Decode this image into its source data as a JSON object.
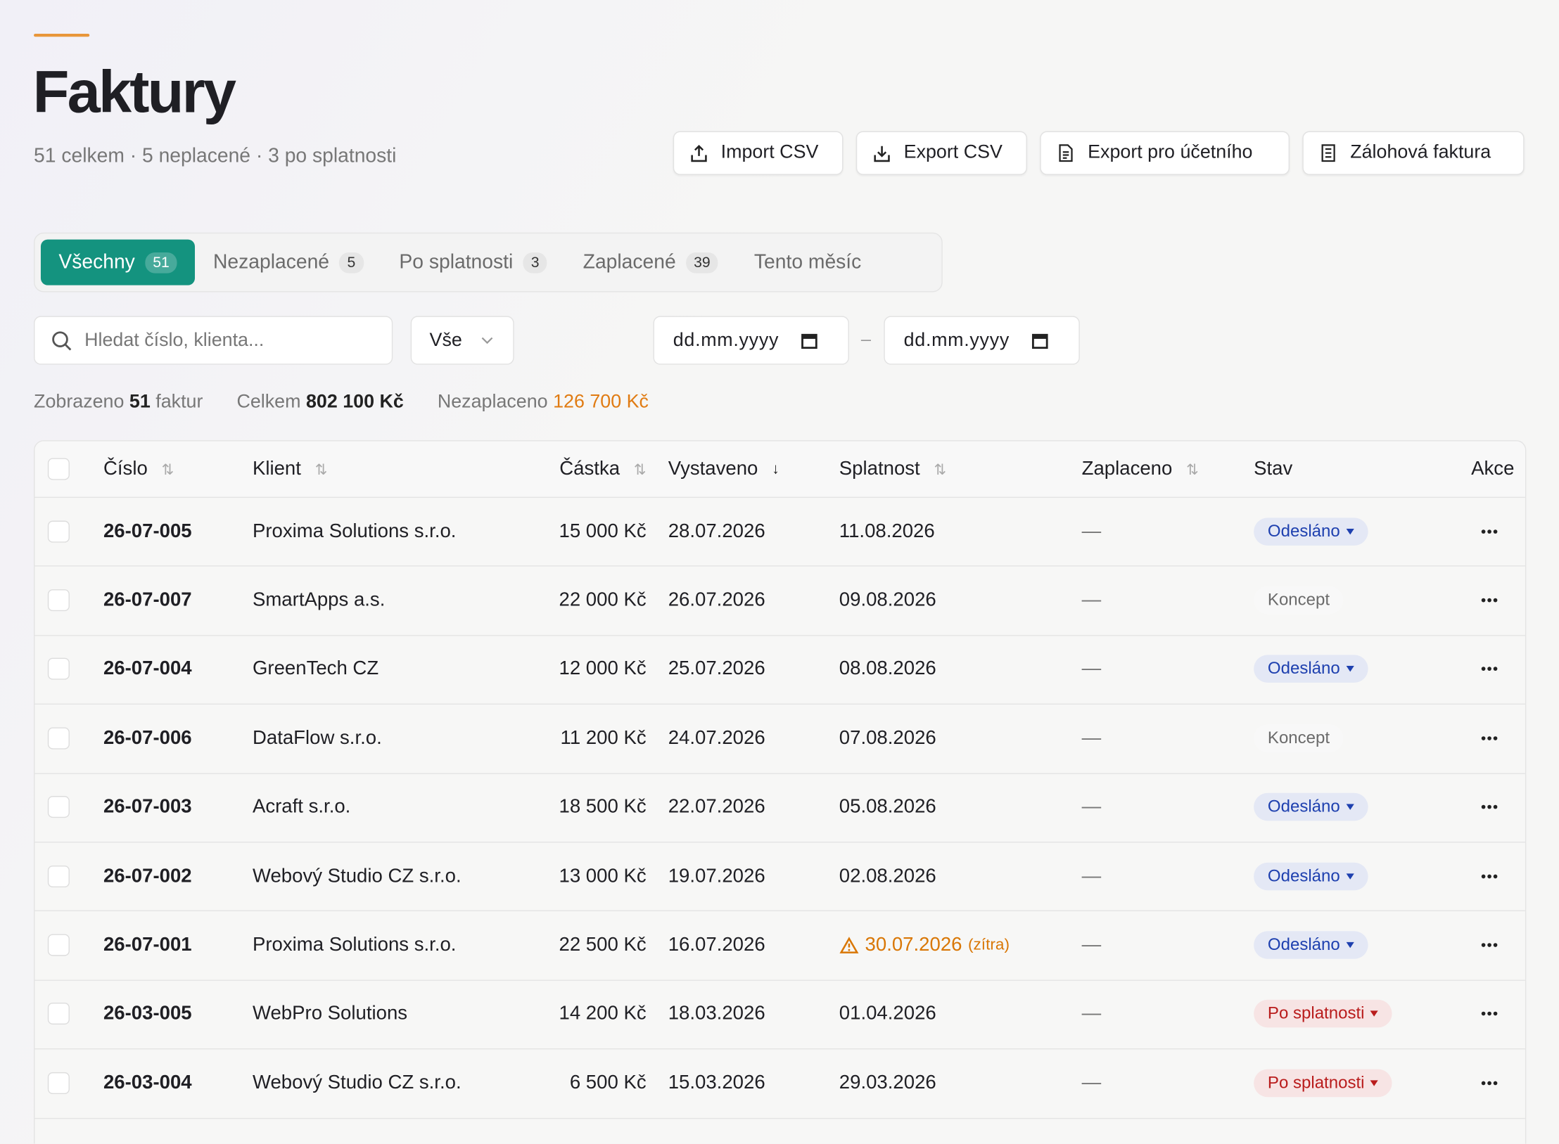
{
  "header": {
    "title": "Faktury",
    "subtitle": "51 celkem · 5 neplacené · 3 po splatnosti"
  },
  "actions": [
    "Import CSV",
    "Export CSV",
    "Export pro účetního",
    "Zálohová faktura"
  ],
  "tabs": [
    {
      "label": "Všechny",
      "count": "51"
    },
    {
      "label": "Nezaplacené",
      "count": "5"
    },
    {
      "label": "Po splatnosti",
      "count": "3"
    },
    {
      "label": "Zaplacené",
      "count": "39"
    },
    {
      "label": "Tento měsíc"
    }
  ],
  "filters": {
    "search_placeholder": "Hledat číslo, klienta...",
    "status_select": "Vše",
    "date_from": "dd.mm.yyyy",
    "date_separator": "–",
    "date_to": "dd.mm.yyyy"
  },
  "summary": {
    "shown_label": "Zobrazeno",
    "shown_count": "51",
    "shown_unit": "faktur",
    "total_label": "Celkem",
    "total": "802 100 Kč",
    "unpaid_label": "Nezaplaceno",
    "unpaid": "126 700 Kč"
  },
  "table": {
    "columns": [
      "Číslo",
      "Klient",
      "Částka",
      "Vystaveno",
      "Splatnost",
      "Zaplaceno",
      "Stav",
      "Akce"
    ],
    "rows": [
      {
        "number": "26-07-005",
        "client": "Proxima Solutions s.r.o.",
        "amount": "15 000 Kč",
        "issued": "28.07.2026",
        "due": "11.08.2026",
        "paid": "—",
        "status": "Odesláno",
        "status_color": "#1e40af"
      },
      {
        "number": "26-07-007",
        "client": "SmartApps a.s.",
        "amount": "22 000 Kč",
        "issued": "26.07.2026",
        "due": "09.08.2026",
        "paid": "—",
        "status": "Koncept",
        "status_color": "#6b6b6b"
      },
      {
        "number": "26-07-004",
        "client": "GreenTech CZ",
        "amount": "12 000 Kč",
        "issued": "25.07.2026",
        "due": "08.08.2026",
        "paid": "—",
        "status": "Odesláno",
        "status_color": "#1e40af"
      },
      {
        "number": "26-07-006",
        "client": "DataFlow s.r.o.",
        "amount": "11 200 Kč",
        "issued": "24.07.2026",
        "due": "07.08.2026",
        "paid": "—",
        "status": "Koncept",
        "status_color": "#6b6b6b"
      },
      {
        "number": "26-07-003",
        "client": "Acraft s.r.o.",
        "amount": "18 500 Kč",
        "issued": "22.07.2026",
        "due": "05.08.2026",
        "paid": "—",
        "status": "Odesláno",
        "status_color": "#1e40af"
      },
      {
        "number": "26-07-002",
        "client": "Webový Studio CZ s.r.o.",
        "amount": "13 000 Kč",
        "issued": "19.07.2026",
        "due": "02.08.2026",
        "paid": "—",
        "status": "Odesláno",
        "status_color": "#1e40af"
      },
      {
        "number": "26-07-001",
        "client": "Proxima Solutions s.r.o.",
        "amount": "22 500 Kč",
        "issued": "16.07.2026",
        "due": "30.07.2026",
        "due_note": "(zítra)",
        "due_color": "#d97706",
        "paid": "—",
        "status": "Odesláno",
        "status_color": "#1e40af"
      },
      {
        "number": "26-03-005",
        "client": "WebPro Solutions",
        "amount": "14 200 Kč",
        "issued": "18.03.2026",
        "due": "01.04.2026",
        "paid": "—",
        "status": "Po splatnosti",
        "status_color": "#b91c1c"
      },
      {
        "number": "26-03-004",
        "client": "Webový Studio CZ s.r.o.",
        "amount": "6 500 Kč",
        "issued": "15.03.2026",
        "due": "29.03.2026",
        "paid": "—",
        "status": "Po splatnosti",
        "status_color": "#b91c1c"
      }
    ]
  }
}
